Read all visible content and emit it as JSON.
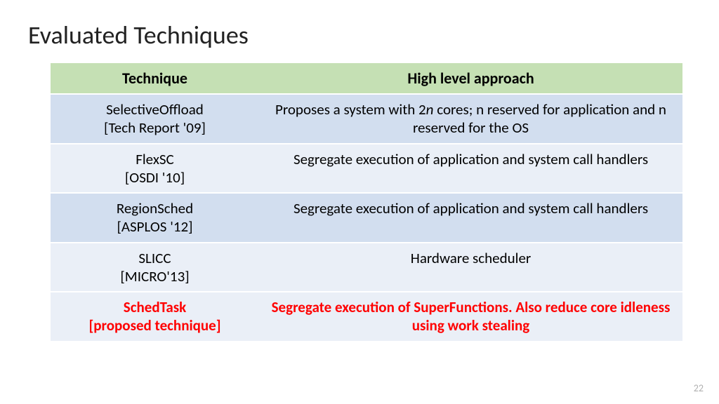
{
  "title": "Evaluated Techniques",
  "page_number": "22",
  "table": {
    "header_bg": "#c5e0b4",
    "row_dark_bg": "#d2deef",
    "row_light_bg": "#eaeff7",
    "highlight_color": "#ff0000",
    "text_color": "#000000",
    "columns": [
      {
        "label": "Technique",
        "width_pct": 33
      },
      {
        "label": "High level approach",
        "width_pct": 67
      }
    ],
    "rows": [
      {
        "shade": "dark",
        "highlight": false,
        "technique_name": "SelectiveOffload",
        "technique_cite": "[Tech Report '09]",
        "approach_pre": "Proposes a system with 2",
        "approach_n": "n",
        "approach_post": " cores; n reserved for application and n reserved for the OS"
      },
      {
        "shade": "light",
        "highlight": false,
        "technique_name": "FlexSC",
        "technique_cite": "[OSDI '10]",
        "approach": "Segregate execution of application and system call handlers"
      },
      {
        "shade": "dark",
        "highlight": false,
        "technique_name": "RegionSched",
        "technique_cite": "[ASPLOS '12]",
        "approach": "Segregate execution of application and system call handlers"
      },
      {
        "shade": "light",
        "highlight": false,
        "technique_name": "SLICC",
        "technique_cite": "[MICRO'13]",
        "approach": "Hardware scheduler"
      },
      {
        "shade": "light",
        "highlight": true,
        "technique_name": "SchedTask",
        "technique_cite": "[proposed technique]",
        "approach": "Segregate execution of SuperFunctions. Also reduce core idleness using work stealing"
      }
    ]
  }
}
